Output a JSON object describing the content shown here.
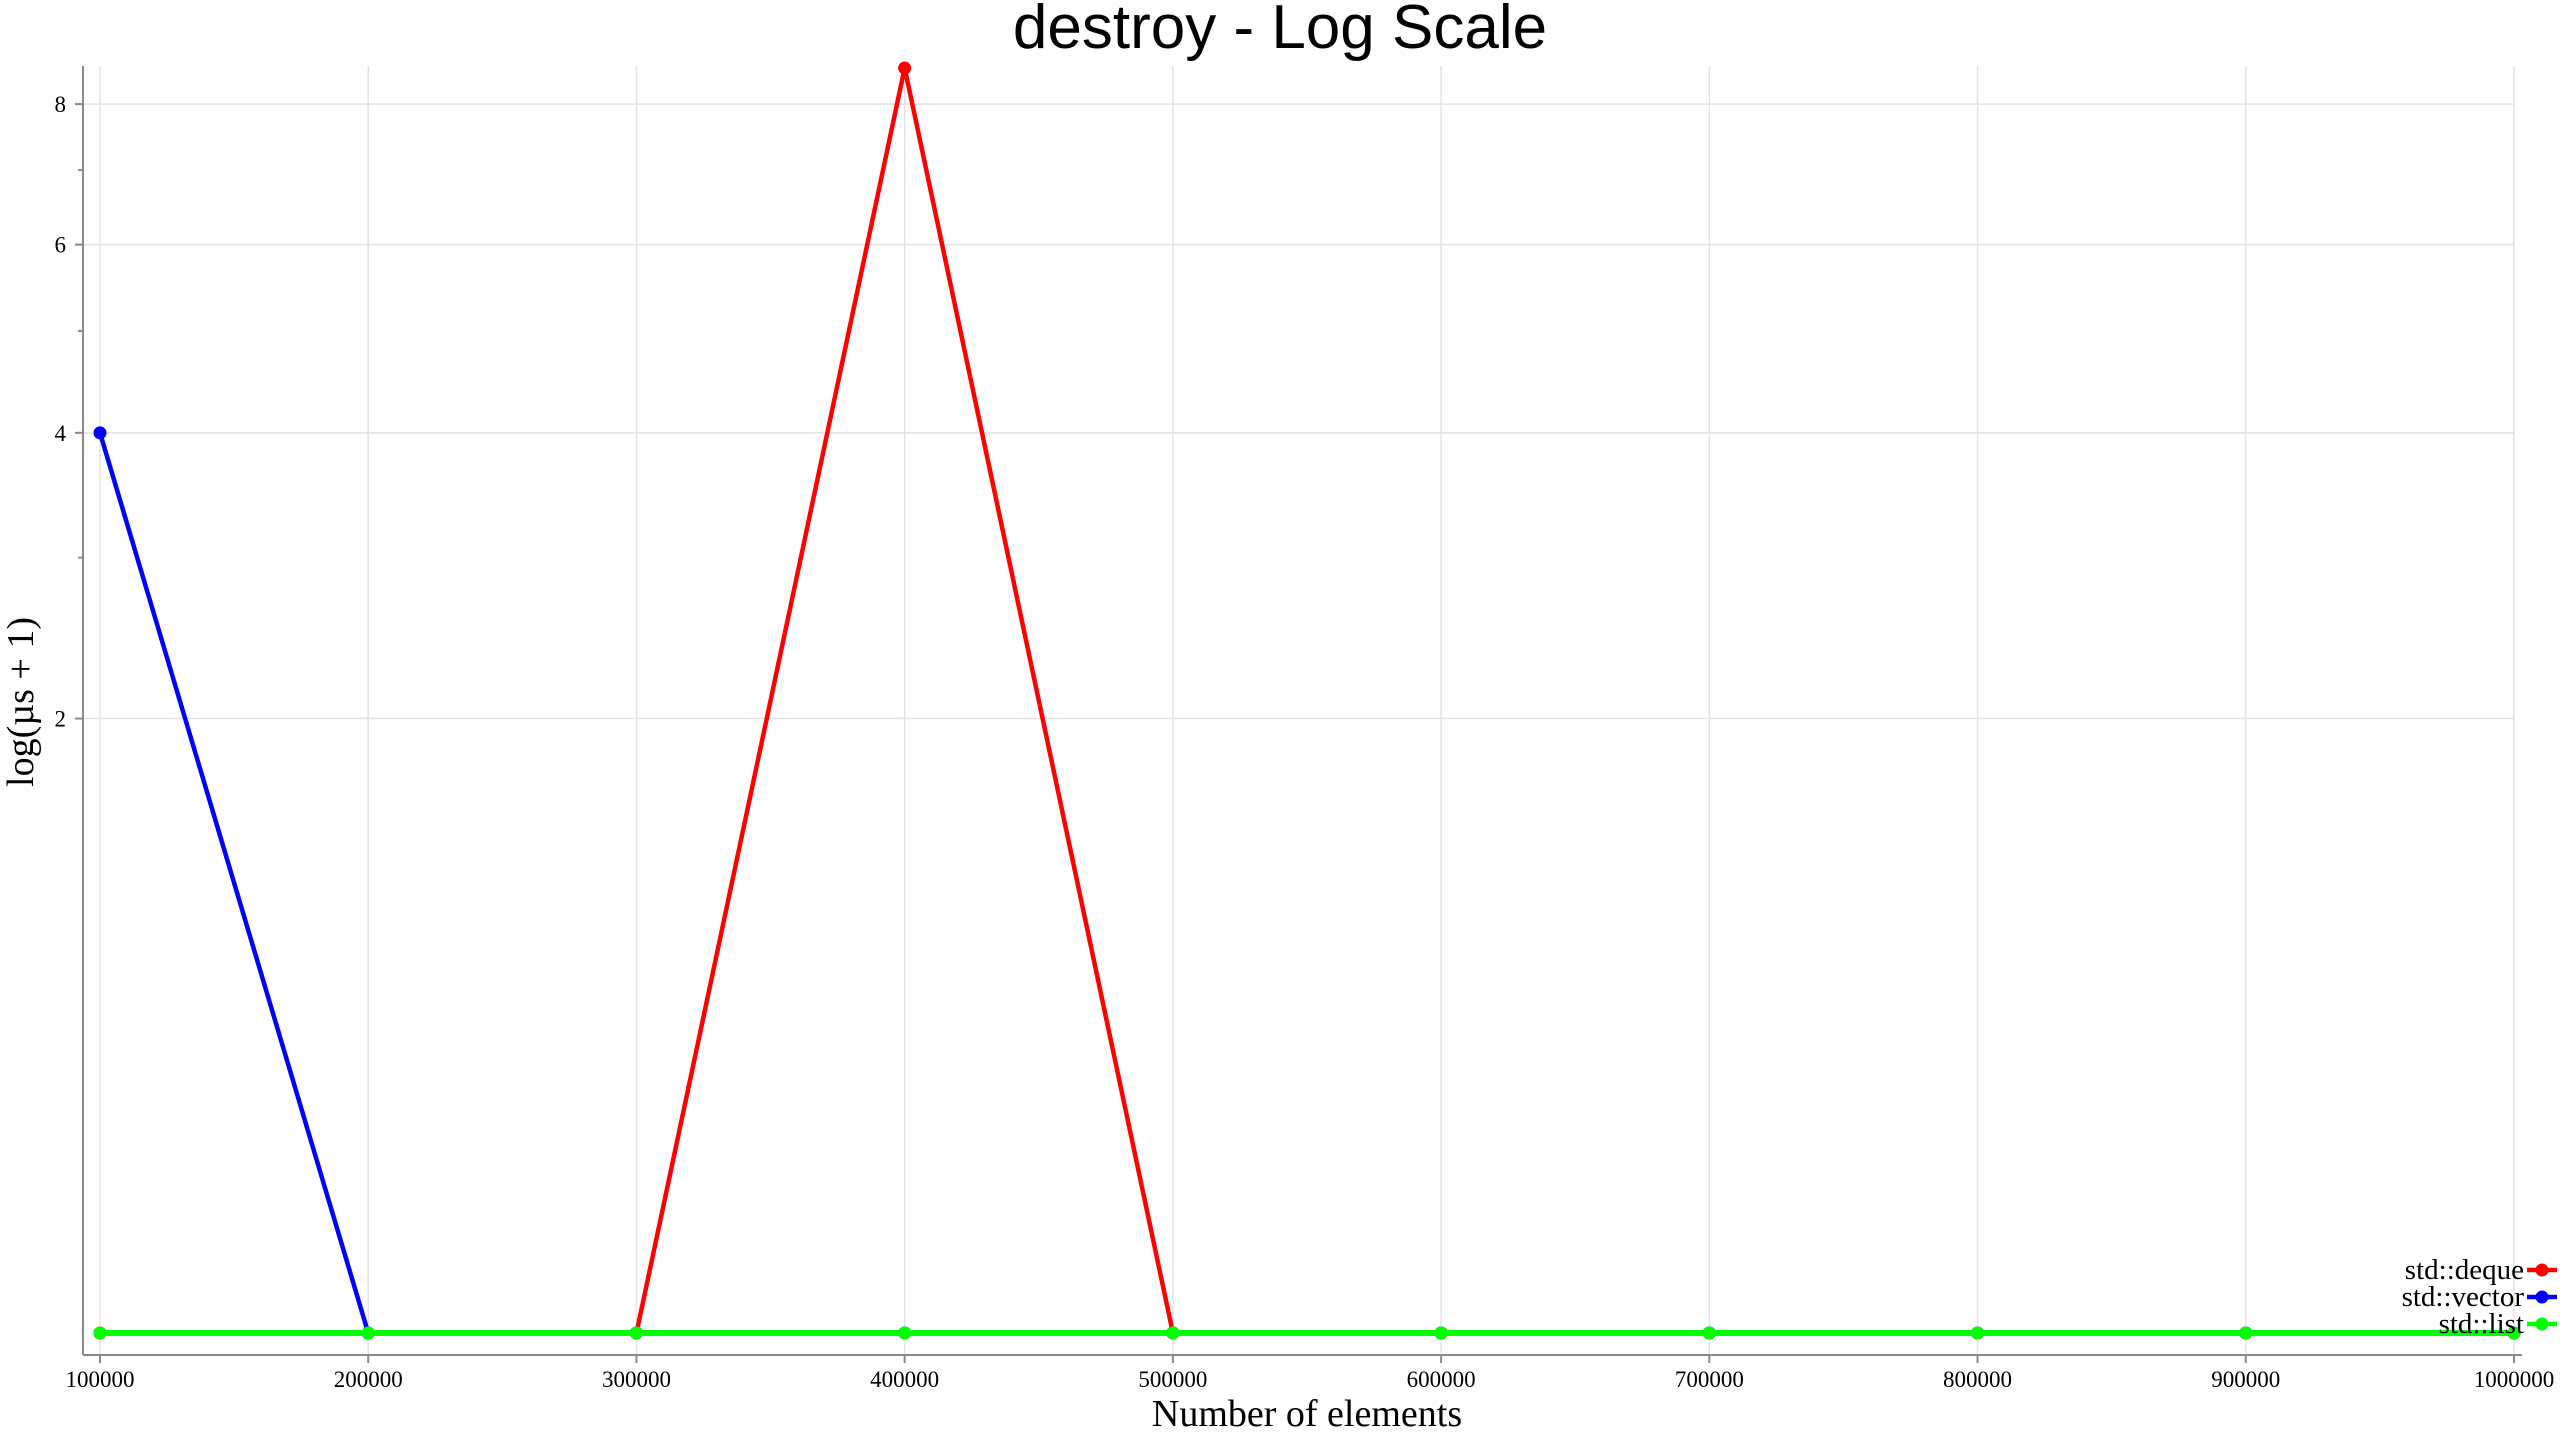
{
  "chart_data": {
    "type": "line",
    "title": "destroy - Log Scale",
    "xlabel": "Number of elements",
    "ylabel": "log(µs + 1)",
    "x": [
      100000,
      200000,
      300000,
      400000,
      500000,
      600000,
      700000,
      800000,
      900000,
      1000000
    ],
    "x_tick_labels": [
      "100000",
      "200000",
      "300000",
      "400000",
      "500000",
      "600000",
      "700000",
      "800000",
      "900000",
      "1000000"
    ],
    "y_ticks": [
      2,
      4,
      6,
      8
    ],
    "y_minor_ticks": [
      3,
      5,
      7
    ],
    "xlim": [
      100000,
      1000000
    ],
    "ylim": [
      0,
      8.6
    ],
    "y_scale": "log",
    "grid": true,
    "legend_position": "bottom-right",
    "series": [
      {
        "name": "std::deque",
        "color": "#ff0000",
        "values": [
          0,
          0,
          0,
          8.6,
          0,
          0,
          0,
          0,
          0,
          0
        ]
      },
      {
        "name": "std::vector",
        "color": "#0000ff",
        "values": [
          4,
          0,
          0,
          0,
          0,
          0,
          0,
          0,
          0,
          0
        ]
      },
      {
        "name": "std::list",
        "color": "#00ff00",
        "values": [
          0,
          0,
          0,
          0,
          0,
          0,
          0,
          0,
          0,
          0
        ]
      }
    ]
  }
}
